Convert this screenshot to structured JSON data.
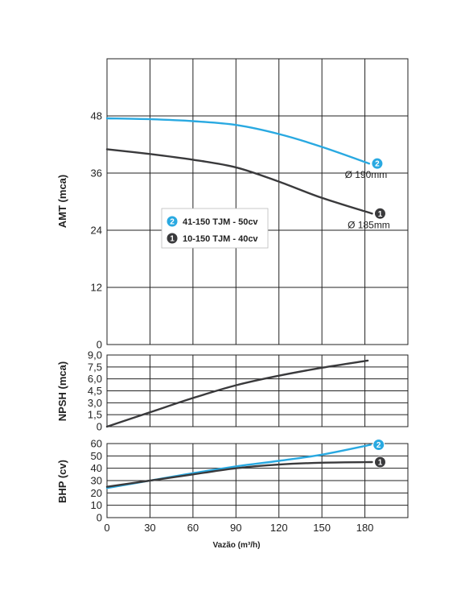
{
  "chart_data": [
    {
      "type": "line",
      "ylabel": "AMT (mca)",
      "xlim": [
        0,
        210
      ],
      "ylim": [
        0,
        60
      ],
      "xticks": [
        0,
        30,
        60,
        90,
        120,
        150,
        180
      ],
      "yticks": [
        "0",
        "12",
        "24",
        "36",
        "48"
      ],
      "yticks_values": [
        0,
        12,
        24,
        36,
        48
      ],
      "grid": true,
      "legend_position": "center-left",
      "series": [
        {
          "name": "41-150 TJM - 50cv",
          "marker": "2",
          "color": "#29a9e1",
          "points": [
            [
              0,
              47.5
            ],
            [
              30,
              47.3
            ],
            [
              60,
              46.9
            ],
            [
              90,
              46.1
            ],
            [
              120,
              44.2
            ],
            [
              150,
              41.5
            ],
            [
              183,
              38
            ]
          ],
          "label": "Ø 190mm"
        },
        {
          "name": "10-150 TJM - 40cv",
          "marker": "1",
          "color": "#3a3a3c",
          "points": [
            [
              0,
              41
            ],
            [
              30,
              40
            ],
            [
              60,
              38.8
            ],
            [
              90,
              37.2
            ],
            [
              120,
              34.2
            ],
            [
              150,
              30.8
            ],
            [
              185,
              27.5
            ]
          ],
          "label": "Ø 185mm"
        }
      ]
    },
    {
      "type": "line",
      "ylabel": "NPSH (mca)",
      "xlim": [
        0,
        210
      ],
      "ylim": [
        0,
        9
      ],
      "yticks": [
        "0",
        "1,5",
        "3,0",
        "4,5",
        "6,0",
        "7,5",
        "9,0"
      ],
      "yticks_values": [
        0,
        1.5,
        3,
        4.5,
        6,
        7.5,
        9
      ],
      "grid": true,
      "series": [
        {
          "color": "#3a3a3c",
          "points": [
            [
              0,
              0
            ],
            [
              30,
              1.8
            ],
            [
              60,
              3.6
            ],
            [
              90,
              5.2
            ],
            [
              120,
              6.4
            ],
            [
              150,
              7.4
            ],
            [
              182,
              8.3
            ]
          ]
        }
      ]
    },
    {
      "type": "line",
      "ylabel": "BHP (cv)",
      "xlabel": "Vazão (m³/h)",
      "xlim": [
        0,
        210
      ],
      "ylim": [
        0,
        60
      ],
      "xticks": [
        0,
        30,
        60,
        90,
        120,
        150,
        180
      ],
      "yticks": [
        "0",
        "10",
        "20",
        "30",
        "40",
        "50",
        "60"
      ],
      "yticks_values": [
        0,
        10,
        20,
        30,
        40,
        50,
        60
      ],
      "grid": true,
      "series": [
        {
          "marker": "2",
          "color": "#29a9e1",
          "points": [
            [
              0,
              24
            ],
            [
              30,
              30
            ],
            [
              60,
              36
            ],
            [
              90,
              41.5
            ],
            [
              120,
              46
            ],
            [
              150,
              51
            ],
            [
              184,
              59
            ]
          ]
        },
        {
          "marker": "1",
          "color": "#3a3a3c",
          "points": [
            [
              0,
              25
            ],
            [
              30,
              30
            ],
            [
              60,
              35
            ],
            [
              90,
              40
            ],
            [
              120,
              43
            ],
            [
              150,
              44.5
            ],
            [
              185,
              45
            ]
          ]
        }
      ]
    }
  ]
}
